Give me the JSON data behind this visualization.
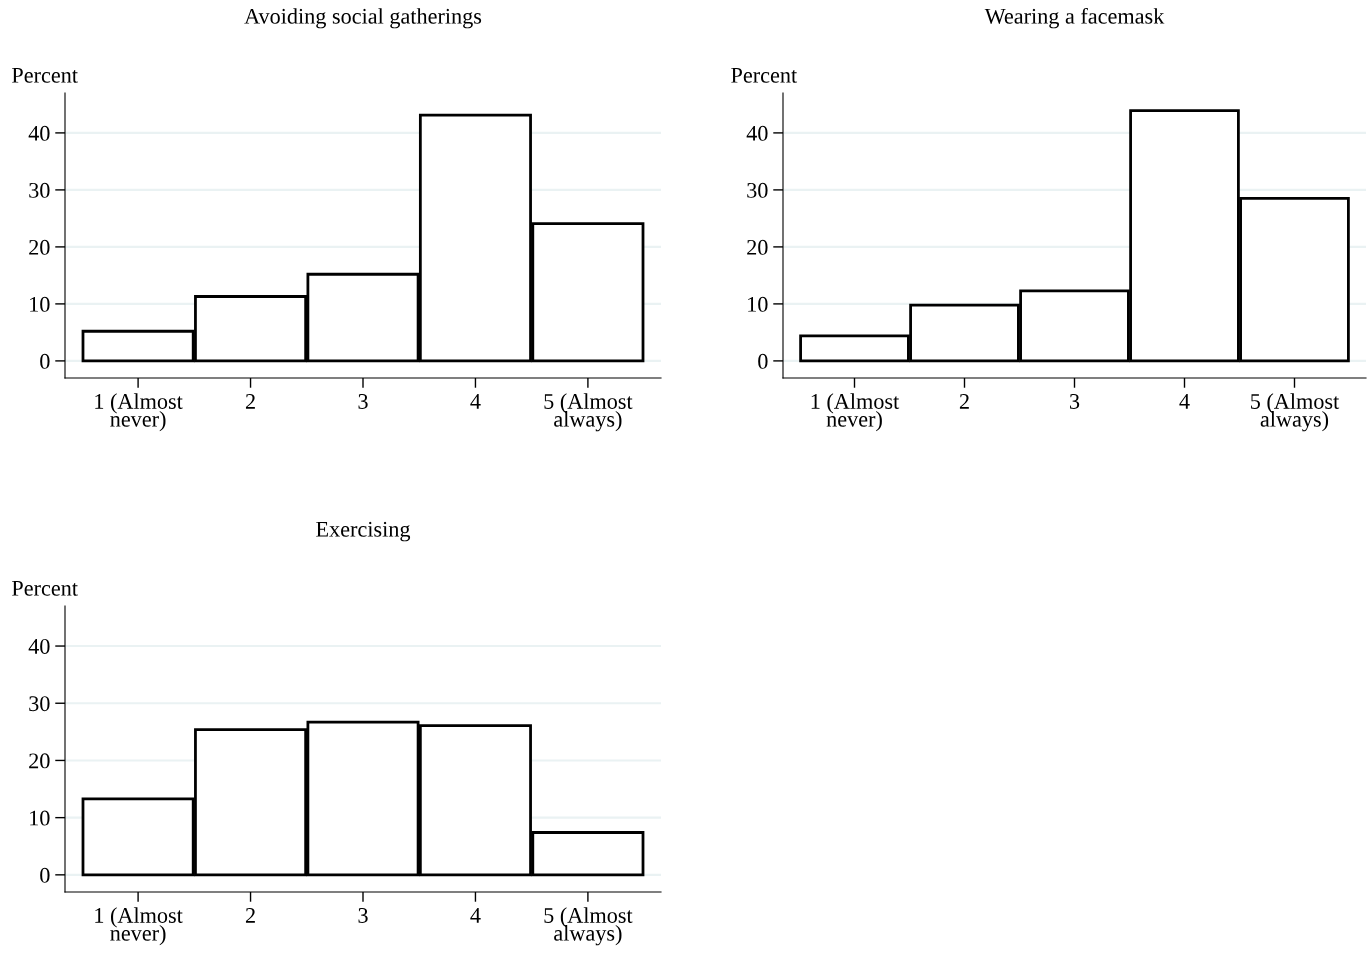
{
  "chart_data": [
    {
      "type": "bar",
      "title": "Avoiding social gatherings",
      "ylabel": "Percent",
      "categories": [
        "1 (Almost\nnever)",
        "2",
        "3",
        "4",
        "5 (Almost\nalways)"
      ],
      "values": [
        5.2,
        11.3,
        15.2,
        43.1,
        24.1
      ],
      "color": "#ffffff",
      "ylim": [
        -3,
        47
      ],
      "yticks": [
        0,
        10,
        20,
        30,
        40
      ],
      "grid": "y"
    },
    {
      "type": "bar",
      "title": "Wearing a facemask",
      "ylabel": "Percent",
      "categories": [
        "1 (Almost\nnever)",
        "2",
        "3",
        "4",
        "5 (Almost\nalways)"
      ],
      "values": [
        4.4,
        9.8,
        12.3,
        43.9,
        28.5
      ],
      "color": "#ffffff",
      "ylim": [
        -3,
        47
      ],
      "yticks": [
        0,
        10,
        20,
        30,
        40
      ],
      "grid": "y"
    },
    {
      "type": "bar",
      "title": "Exercising",
      "ylabel": "Percent",
      "categories": [
        "1 (Almost\nnever)",
        "2",
        "3",
        "4",
        "5 (Almost\nalways)"
      ],
      "values": [
        13.3,
        25.4,
        26.7,
        26.1,
        7.4
      ],
      "color": "#ffffff",
      "ylim": [
        -3,
        47
      ],
      "yticks": [
        0,
        10,
        20,
        30,
        40
      ],
      "grid": "y"
    }
  ]
}
